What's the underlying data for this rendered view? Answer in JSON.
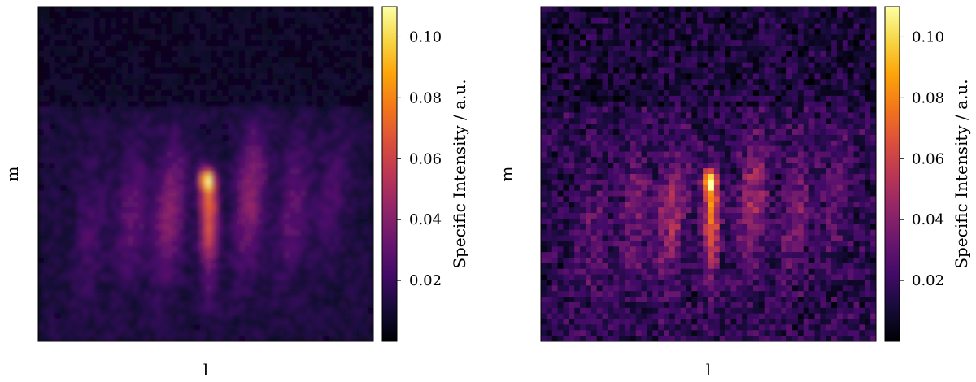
{
  "chart_data": [
    {
      "type": "heatmap",
      "title": "",
      "xlabel": "l",
      "ylabel": "m",
      "grid": false,
      "variant": "smooth",
      "colormap": "inferno",
      "colorbar": {
        "label": "Specific Intensity / a.u.",
        "range": [
          0.0,
          0.11
        ],
        "ticks": [
          0.02,
          0.04,
          0.06,
          0.08,
          0.1
        ],
        "tick_labels": [
          "0.02",
          "0.04",
          "0.06",
          "0.08",
          "0.10"
        ]
      },
      "peak_value": 0.11,
      "source": {
        "l": 0.1,
        "m": 0.25
      },
      "sources": [
        {
          "l": 0.1,
          "m": 0.25,
          "value": 0.105
        },
        {
          "l": 0.1,
          "m": 0.1,
          "value": 0.05
        },
        {
          "l": 0.1,
          "m": 0.0,
          "value": 0.04
        }
      ]
    },
    {
      "type": "heatmap",
      "title": "",
      "xlabel": "l",
      "ylabel": "m",
      "grid": false,
      "variant": "noisy",
      "colormap": "inferno",
      "colorbar": {
        "label": "Specific Intensity / a.u.",
        "range": [
          0.0,
          0.11
        ],
        "ticks": [
          0.02,
          0.04,
          0.06,
          0.08,
          0.1
        ],
        "tick_labels": [
          "0.02",
          "0.04",
          "0.06",
          "0.08",
          "0.10"
        ]
      },
      "peak_value": 0.11,
      "source": {
        "l": 0.1,
        "m": 0.25
      },
      "sources": [
        {
          "l": 0.1,
          "m": 0.25,
          "value": 0.105
        },
        {
          "l": 0.1,
          "m": 0.1,
          "value": 0.055
        },
        {
          "l": 0.1,
          "m": 0.0,
          "value": 0.045
        }
      ]
    }
  ]
}
